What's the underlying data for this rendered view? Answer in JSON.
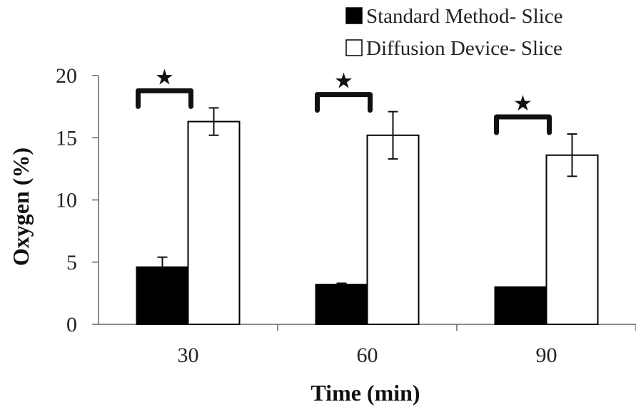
{
  "chart_data": {
    "type": "bar",
    "xlabel": "Time (min)",
    "ylabel": "Oxygen (%)",
    "ylim": [
      0,
      20
    ],
    "yticks": [
      0,
      5,
      10,
      15,
      20
    ],
    "categories": [
      "30",
      "60",
      "90"
    ],
    "series": [
      {
        "name": "Standard Method- Slice",
        "values": [
          4.6,
          3.2,
          3.0
        ],
        "errors": [
          0.8,
          0.1,
          0.0
        ],
        "color": "#000000"
      },
      {
        "name": "Diffusion Device- Slice",
        "values": [
          16.3,
          15.2,
          13.6
        ],
        "errors": [
          1.1,
          1.9,
          1.7
        ],
        "color": "#ffffff"
      }
    ],
    "significance_marker": "★",
    "significant_categories": [
      "30",
      "60",
      "90"
    ],
    "legend_position": "top-right",
    "grid": false
  }
}
